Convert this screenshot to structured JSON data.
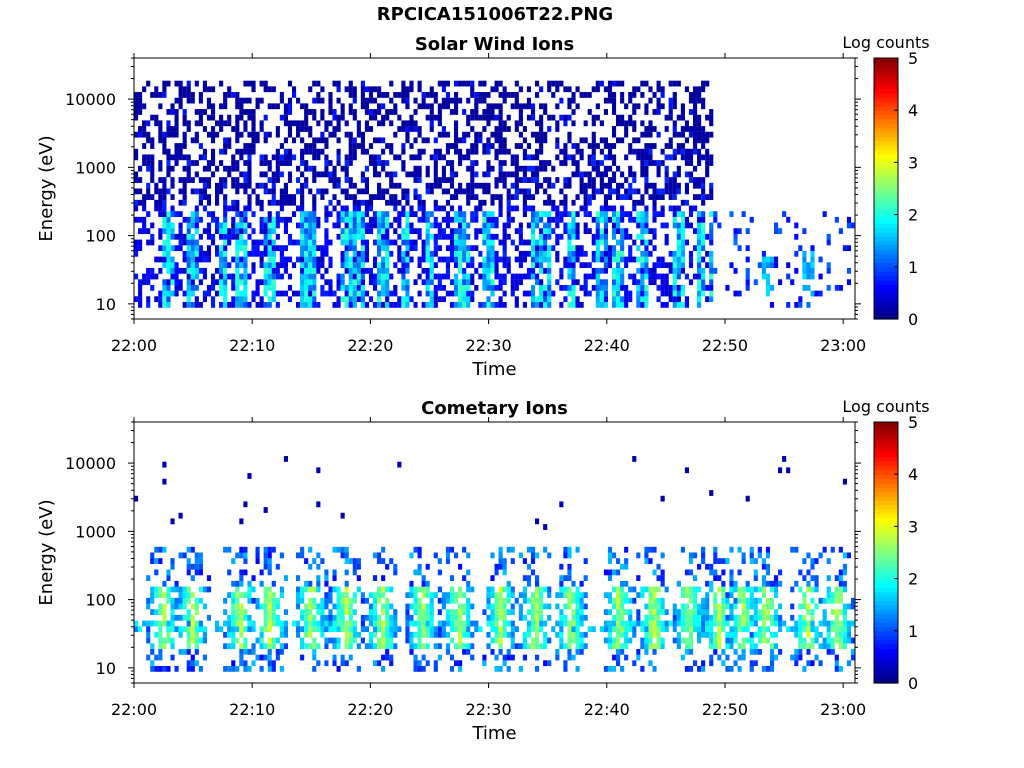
{
  "figure_title": "RPCICA151006T22.PNG",
  "chart_data": [
    {
      "type": "heatmap",
      "title": "Solar Wind Ions",
      "xlabel": "Time",
      "ylabel": "Energy (eV)",
      "x_ticks": [
        "22:00",
        "22:10",
        "22:20",
        "22:30",
        "22:40",
        "22:50",
        "23:00"
      ],
      "x_range": [
        "22:00",
        "23:01"
      ],
      "y_scale": "log",
      "y_ticks": [
        10,
        100,
        1000,
        10000
      ],
      "y_tick_labels": [
        "10",
        "100",
        "1000",
        "10000"
      ],
      "y_range": [
        6,
        40000
      ],
      "colorbar": {
        "label": "Log counts",
        "range": [
          0,
          5
        ],
        "ticks": [
          "0",
          "1",
          "2",
          "3",
          "4",
          "5"
        ],
        "colormap": "jet"
      },
      "data_extent_min": 22.8,
      "notes_data": {
        "spike_times_min": [
          3,
          5,
          7.5,
          9,
          11.5,
          14.5,
          15,
          18,
          19,
          21,
          23,
          25,
          27.5,
          28,
          30,
          34,
          35,
          37,
          39.5,
          41,
          43,
          46,
          48,
          49,
          54,
          57
        ],
        "sparse_after_min": 49
      }
    },
    {
      "type": "heatmap",
      "title": "Cometary Ions",
      "xlabel": "Time",
      "ylabel": "Energy (eV)",
      "x_ticks": [
        "22:00",
        "22:10",
        "22:20",
        "22:30",
        "22:40",
        "22:50",
        "23:00"
      ],
      "x_range": [
        "22:00",
        "23:01"
      ],
      "y_scale": "log",
      "y_ticks": [
        10,
        100,
        1000,
        10000
      ],
      "y_tick_labels": [
        "10",
        "100",
        "1000",
        "10000"
      ],
      "y_range": [
        6,
        40000
      ],
      "colorbar": {
        "label": "Log counts",
        "range": [
          0,
          5
        ],
        "ticks": [
          "0",
          "1",
          "2",
          "3",
          "4",
          "5"
        ],
        "colormap": "jet"
      },
      "burst_times_min": [
        2.5,
        5,
        9,
        11.5,
        15,
        18,
        21,
        24.5,
        27.5,
        31,
        34,
        37,
        41,
        44,
        47,
        49.5,
        51.5,
        53.5,
        57,
        59.5
      ]
    }
  ]
}
